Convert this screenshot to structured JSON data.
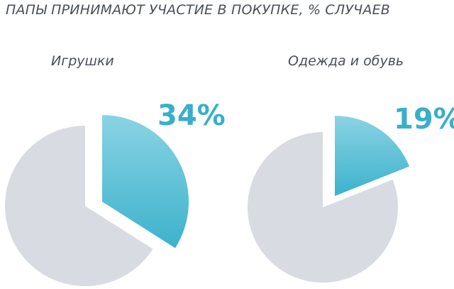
{
  "title": "ПАПЫ ПРИНИМАЮТ УЧАСТИЕ В ПОКУПКЕ, % СЛУЧАЕВ",
  "colors": {
    "highlight_top": "#8ad3e3",
    "highlight_bottom": "#3cb2cc",
    "rest": "#d8dbe2",
    "text": "#4a4f57",
    "accent": "#3aaec9"
  },
  "chart_data": [
    {
      "type": "pie",
      "title": "Игрушки",
      "values": [
        34,
        66
      ],
      "highlight_label": "34%"
    },
    {
      "type": "pie",
      "title": "Одежда и обувь",
      "values": [
        19,
        81
      ],
      "highlight_label": "19%"
    }
  ]
}
